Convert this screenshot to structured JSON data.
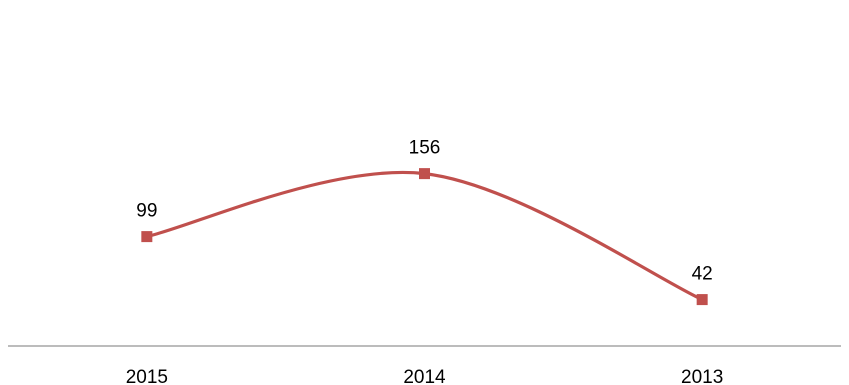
{
  "chart_data": {
    "type": "line",
    "smooth": true,
    "categories": [
      "2015",
      "2014",
      "2013"
    ],
    "series": [
      {
        "values": [
          99,
          156,
          42
        ],
        "color": "#c0504d",
        "marker": "square"
      }
    ],
    "data_labels": [
      "99",
      "156",
      "42"
    ],
    "title": "",
    "xlabel": "",
    "ylabel": "",
    "y_axis_visible": false,
    "grid": false,
    "legend": "none",
    "axis_line_color": "#a6a6a6"
  }
}
